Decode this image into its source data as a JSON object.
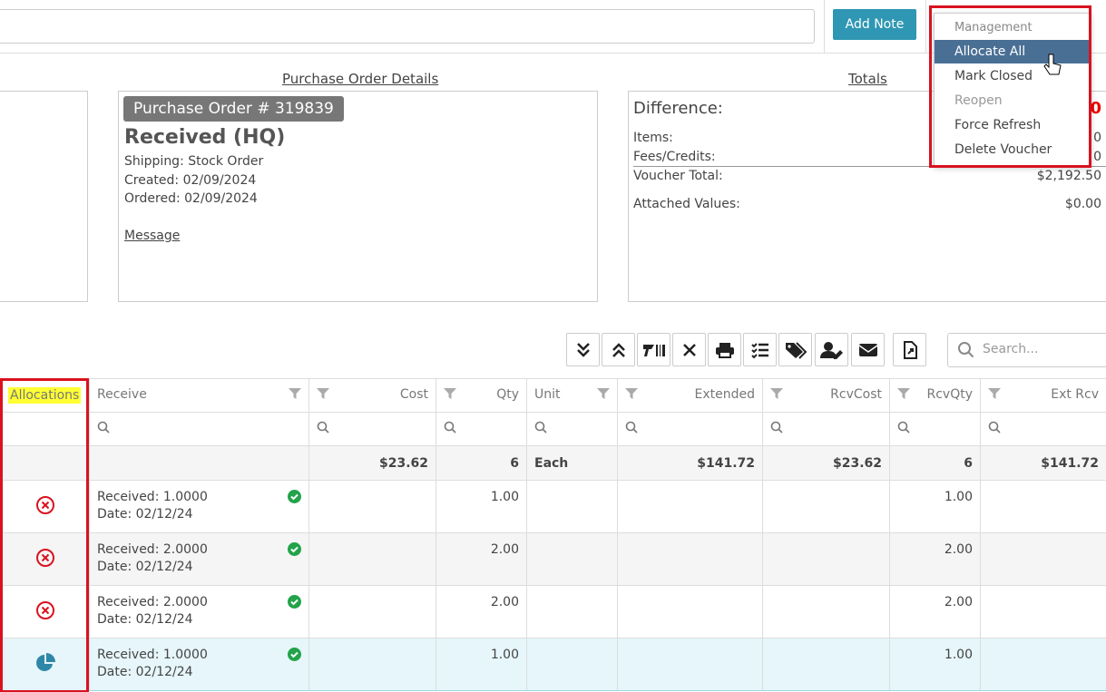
{
  "top_bar": {
    "add_note": "Add Note"
  },
  "menu": {
    "header": "Management",
    "items": [
      "Allocate All",
      "Mark Closed",
      "Reopen",
      "Force Refresh",
      "Delete Voucher"
    ]
  },
  "sections": {
    "po_details": "Purchase Order Details",
    "totals": "Totals"
  },
  "po": {
    "badge": "Purchase Order # 319839",
    "status": "Received (HQ)",
    "shipping": "Shipping: Stock Order",
    "created": "Created: 02/09/2024",
    "ordered": "Ordered: 02/09/2024",
    "message": "Message"
  },
  "totals": {
    "difference_label": "Difference:",
    "difference_value": "0",
    "items_label": "Items:",
    "items_value": "0",
    "fees_label": "Fees/Credits:",
    "fees_value": "0",
    "voucher_label": "Voucher Total:",
    "voucher_value": "$2,192.50",
    "attached_label": "Attached Values:",
    "attached_value": "$0.00"
  },
  "search": {
    "placeholder": "Search..."
  },
  "table": {
    "headers": [
      "Allocations",
      "Receive",
      "Cost",
      "Qty",
      "Unit",
      "Extended",
      "RcvCost",
      "RcvQty",
      "Ext Rcv"
    ],
    "summary": [
      "$23.62",
      "6",
      "Each",
      "$141.72",
      "$23.62",
      "6",
      "$141.72"
    ],
    "rows": [
      {
        "receive": "Received: 1.0000",
        "date": "Date: 02/12/24",
        "qty": "1.00",
        "rcv_qty": "1.00"
      },
      {
        "receive": "Received: 2.0000",
        "date": "Date: 02/12/24",
        "qty": "2.00",
        "rcv_qty": "2.00"
      },
      {
        "receive": "Received: 2.0000",
        "date": "Date: 02/12/24",
        "qty": "2.00",
        "rcv_qty": "2.00"
      },
      {
        "receive": "Received: 1.0000",
        "date": "Date: 02/12/24",
        "qty": "1.00",
        "rcv_qty": "1.00"
      }
    ]
  }
}
